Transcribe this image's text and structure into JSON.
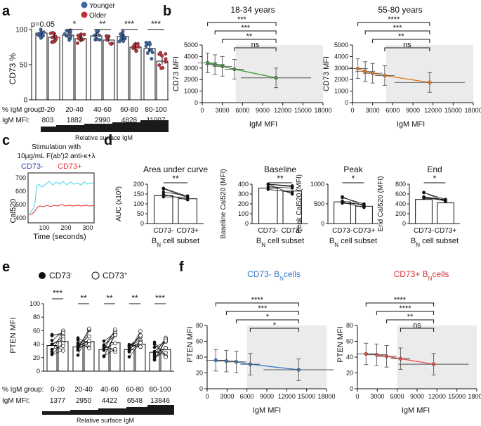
{
  "colors": {
    "younger": "#3e66a8",
    "older": "#c0313a",
    "shade": "#ebebeb",
    "green": "#3a9a3a",
    "orange": "#e07b1f",
    "cyan": "#5ed6ee",
    "red": "#ea4a4a",
    "blue": "#3a78c4"
  },
  "panels": {
    "a": "a",
    "b": "b",
    "c": "c",
    "d": "d",
    "e": "e",
    "f": "f"
  },
  "chart_data": [
    {
      "id": "a",
      "type": "bar",
      "ylabel": "CD73 %",
      "ylim": [
        0,
        100
      ],
      "yticks": [
        0,
        50,
        100
      ],
      "legend": [
        "Younger",
        "Older"
      ],
      "categories": [
        "0-20",
        "20-40",
        "40-60",
        "60-80",
        "80-100"
      ],
      "series": [
        {
          "name": "Younger",
          "values": [
            95,
            92,
            91,
            90,
            73
          ]
        },
        {
          "name": "Older",
          "values": [
            89,
            87,
            85,
            75,
            55
          ]
        }
      ],
      "significance": [
        "p=0.05",
        "*",
        "**",
        "***",
        "***"
      ],
      "row1_label": "% IgM group:",
      "row1": [
        "0-20",
        "20-40",
        "40-60",
        "60-80",
        "80-100"
      ],
      "row2_label": "IgM MFI:",
      "row2": [
        "803",
        "1882",
        "2990",
        "4828",
        "11007"
      ],
      "axis_title": "Relative surface IgM"
    },
    {
      "id": "b",
      "type": "line",
      "title_left": "18-34 years",
      "title_right": "55-80 years",
      "xlabel": "IgM MFI",
      "ylabel": "CD73 MFI",
      "xlim": [
        0,
        18000
      ],
      "ylim": [
        0,
        5000
      ],
      "xticks": [
        "0",
        "3000",
        "6000",
        "9000",
        "12000",
        "15000",
        "18000"
      ],
      "yticks": [
        "0",
        "1000",
        "2000",
        "3000",
        "4000",
        "5000"
      ],
      "shade_from": 5000,
      "series": [
        {
          "name": "18-34 years",
          "x": [
            800,
            1900,
            3000,
            4800,
            11000
          ],
          "y": [
            3450,
            3300,
            3150,
            2900,
            2150
          ]
        },
        {
          "name": "55-80 years",
          "x": [
            800,
            1900,
            3000,
            4800,
            11500
          ],
          "y": [
            2950,
            2700,
            2550,
            2350,
            1750
          ]
        }
      ],
      "brackets_left": [
        "***",
        "***",
        "**",
        "ns"
      ],
      "brackets_right": [
        "****",
        "***",
        "**",
        "ns"
      ]
    },
    {
      "id": "c",
      "type": "line",
      "title1": "Stimulation with",
      "title2": "10μg/mL F(ab')2 anti-κ+λ",
      "legend": [
        "CD73-",
        "CD73+"
      ],
      "ylabel": "Cal520",
      "xlabel": "Time (seconds)",
      "xticks": [
        "100",
        "200",
        "300"
      ],
      "yticks": [
        "400",
        "500",
        "600",
        "700"
      ]
    },
    {
      "id": "d",
      "type": "bar",
      "categories": [
        "CD73-",
        "CD73+"
      ],
      "xlabel": "B_N cell subset",
      "xlabel_main": "B",
      "xlabel_sub": "N",
      "xlabel_rest": " cell subset",
      "subplots": [
        {
          "title": "Area under curve",
          "ylabel": "AUC (x10³)",
          "ylim": [
            0,
            200
          ],
          "yticks": [
            "0",
            "50",
            "100",
            "150",
            "200"
          ],
          "values": [
            142,
            126
          ],
          "sig": "**"
        },
        {
          "title": "Baseline",
          "ylabel": "Baseline Cal520 (MFI)",
          "ylim": [
            0,
            400
          ],
          "yticks": [
            "0",
            "100",
            "200",
            "300",
            "400"
          ],
          "values": [
            360,
            330
          ],
          "sig": "**"
        },
        {
          "title": "Peak",
          "ylabel": "Peak Cal520 (MFI)",
          "ylim": [
            0,
            1000
          ],
          "yticks": [
            "0",
            "500",
            "1000"
          ],
          "values": [
            550,
            440
          ],
          "sig": "*"
        },
        {
          "title": "End",
          "ylabel": "End Cal520 (MFI)",
          "ylim": [
            0,
            800
          ],
          "yticks": [
            "0",
            "200",
            "400",
            "600",
            "800"
          ],
          "values": [
            490,
            420
          ],
          "sig": "*"
        }
      ]
    },
    {
      "id": "e",
      "type": "bar",
      "ylabel": "PTEN MFI",
      "ylim": [
        0,
        100
      ],
      "yticks": [
        "0",
        "20",
        "40",
        "60",
        "80",
        "100"
      ],
      "legend_neg": "CD73",
      "legend_pos": "CD73",
      "series": [
        {
          "name": "CD73-",
          "values": [
            38,
            36,
            32,
            32,
            28
          ]
        },
        {
          "name": "CD73+",
          "values": [
            44,
            44,
            42,
            40,
            32
          ]
        }
      ],
      "significance": [
        "***",
        "**",
        "**",
        "**",
        "***"
      ],
      "row1_label": "% IgM group:",
      "row1": [
        "0-20",
        "20-40",
        "40-60",
        "60-80",
        "80-100"
      ],
      "row2_label": "IgM MFI:",
      "row2": [
        "1377",
        "2950",
        "4422",
        "6548",
        "13846"
      ],
      "axis_title": "Relative surface IgM"
    },
    {
      "id": "f",
      "type": "line",
      "title_left": "CD73- B",
      "title_right": "CD73+ B",
      "title_sub": "N",
      "title_suffix": "cells",
      "xlabel": "IgM MFI",
      "ylabel": "PTEN MFI",
      "xlim": [
        0,
        18000
      ],
      "ylim": [
        0,
        80
      ],
      "xticks": [
        "0",
        "3000",
        "6000",
        "9000",
        "12000",
        "15000",
        "18000"
      ],
      "yticks": [
        "0",
        "20",
        "40",
        "60",
        "80"
      ],
      "shade_from": 6000,
      "series": [
        {
          "name": "CD73- BN cells",
          "x": [
            1300,
            2900,
            4400,
            6500,
            13800
          ],
          "y": [
            36,
            35,
            34,
            31,
            24
          ]
        },
        {
          "name": "CD73+ BN cells",
          "x": [
            1300,
            2900,
            4400,
            6500,
            11500
          ],
          "y": [
            44,
            43,
            41,
            38,
            31
          ]
        }
      ],
      "brackets_left": [
        "****",
        "***",
        "*",
        "*"
      ],
      "brackets_right": [
        "****",
        "****",
        "**",
        "ns"
      ]
    }
  ]
}
